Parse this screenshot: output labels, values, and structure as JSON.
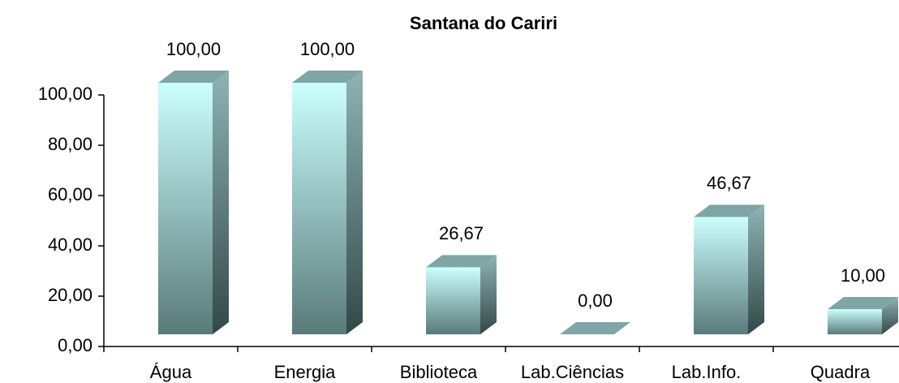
{
  "chart_data": {
    "type": "bar3d",
    "title": "Santana do Cariri",
    "categories": [
      "Água",
      "Energia",
      "Biblioteca",
      "Lab.Ciências",
      "Lab.Info.",
      "Quadra"
    ],
    "values": [
      100,
      100,
      26.67,
      0,
      46.67,
      10
    ],
    "value_labels": [
      "100,00",
      "100,00",
      "26,67",
      "0,00",
      "46,67",
      "10,00"
    ],
    "color": "#7fa5a5",
    "ylim": [
      0,
      100
    ],
    "yticks": [
      {
        "value": 0,
        "label": "0,00"
      },
      {
        "value": 20,
        "label": "20,00"
      },
      {
        "value": 40,
        "label": "40,00"
      },
      {
        "value": 60,
        "label": "60,00"
      },
      {
        "value": 80,
        "label": "80,00"
      },
      {
        "value": 100,
        "label": "100,00"
      }
    ],
    "grid": false
  }
}
